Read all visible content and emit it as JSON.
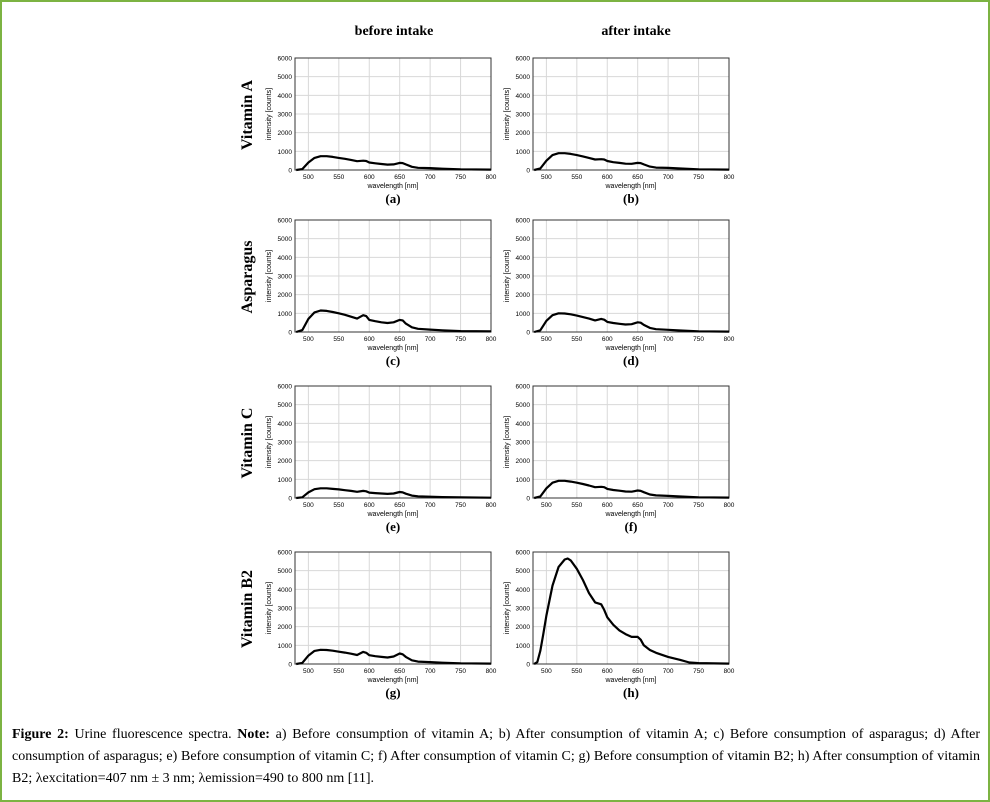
{
  "column_titles": [
    "before intake",
    "after intake"
  ],
  "row_labels": [
    "Vitamin A",
    "Asparagus",
    "Vitamin C",
    "Vitamin B2"
  ],
  "caption": {
    "label": "Figure 2:",
    "text1": " Urine fluorescence spectra. ",
    "note": "Note:",
    "text2": " a) Before consumption of vitamin A; b) After consumption of vitamin A; c) Before consumption of asparagus; d) After consumption of asparagus; e) Before consumption of vitamin C; f) After consumption of vitamin C; g) Before consumption of vitamin B2; h) After consumption of vitamin B2; λexcitation=407 nm ± 3 nm; λemission=490 to 800 nm [11]."
  },
  "chart_data": [
    {
      "id": "a",
      "caption": "(a)",
      "type": "line",
      "xlabel": "wavelength [nm]",
      "ylabel": "intensity [counts]",
      "xlim": [
        478,
        800
      ],
      "ylim": [
        0,
        6000
      ],
      "xticks": [
        500,
        550,
        600,
        650,
        700,
        750,
        800
      ],
      "yticks": [
        0,
        1000,
        2000,
        3000,
        4000,
        5000,
        6000
      ],
      "grid": true,
      "x": [
        480,
        490,
        500,
        510,
        520,
        530,
        540,
        550,
        560,
        570,
        580,
        590,
        595,
        600,
        610,
        620,
        630,
        640,
        650,
        655,
        660,
        670,
        680,
        700,
        720,
        750,
        800
      ],
      "y": [
        0,
        50,
        400,
        650,
        740,
        740,
        700,
        650,
        600,
        540,
        470,
        500,
        480,
        400,
        360,
        320,
        290,
        300,
        380,
        370,
        300,
        170,
        120,
        100,
        70,
        40,
        20
      ]
    },
    {
      "id": "b",
      "caption": "(b)",
      "type": "line",
      "xlabel": "wavelength [nm]",
      "ylabel": "intensity [counts]",
      "xlim": [
        478,
        800
      ],
      "ylim": [
        0,
        6000
      ],
      "xticks": [
        500,
        550,
        600,
        650,
        700,
        750,
        800
      ],
      "yticks": [
        0,
        1000,
        2000,
        3000,
        4000,
        5000,
        6000
      ],
      "grid": true,
      "x": [
        480,
        490,
        500,
        510,
        520,
        530,
        540,
        550,
        560,
        570,
        580,
        590,
        595,
        600,
        610,
        620,
        630,
        640,
        650,
        655,
        660,
        670,
        680,
        700,
        720,
        750,
        800
      ],
      "y": [
        0,
        80,
        500,
        800,
        900,
        900,
        860,
        800,
        730,
        650,
        560,
        580,
        560,
        480,
        420,
        380,
        340,
        330,
        380,
        370,
        300,
        180,
        130,
        110,
        80,
        40,
        20
      ]
    },
    {
      "id": "c",
      "caption": "(c)",
      "type": "line",
      "xlabel": "wavelength [nm]",
      "ylabel": "intensity [counts]",
      "xlim": [
        478,
        800
      ],
      "ylim": [
        0,
        6000
      ],
      "xticks": [
        500,
        550,
        600,
        650,
        700,
        750,
        800
      ],
      "yticks": [
        0,
        1000,
        2000,
        3000,
        4000,
        5000,
        6000
      ],
      "grid": true,
      "x": [
        480,
        490,
        500,
        510,
        520,
        530,
        540,
        550,
        560,
        570,
        580,
        590,
        595,
        600,
        610,
        620,
        630,
        640,
        650,
        655,
        660,
        670,
        680,
        700,
        720,
        750,
        800
      ],
      "y": [
        0,
        100,
        700,
        1050,
        1150,
        1130,
        1070,
        1000,
        920,
        820,
        720,
        900,
        850,
        650,
        580,
        520,
        480,
        520,
        650,
        620,
        450,
        250,
        170,
        130,
        90,
        50,
        30
      ]
    },
    {
      "id": "d",
      "caption": "(d)",
      "type": "line",
      "xlabel": "wavelength [nm]",
      "ylabel": "intensity [counts]",
      "xlim": [
        478,
        800
      ],
      "ylim": [
        0,
        6000
      ],
      "xticks": [
        500,
        550,
        600,
        650,
        700,
        750,
        800
      ],
      "yticks": [
        0,
        1000,
        2000,
        3000,
        4000,
        5000,
        6000
      ],
      "grid": true,
      "x": [
        480,
        490,
        500,
        510,
        520,
        530,
        540,
        550,
        560,
        570,
        580,
        590,
        595,
        600,
        610,
        620,
        630,
        640,
        650,
        655,
        660,
        670,
        680,
        700,
        720,
        750,
        800
      ],
      "y": [
        0,
        90,
        600,
        900,
        1000,
        990,
        950,
        880,
        800,
        720,
        620,
        700,
        660,
        540,
        480,
        440,
        400,
        420,
        520,
        500,
        380,
        220,
        150,
        120,
        80,
        40,
        20
      ]
    },
    {
      "id": "e",
      "caption": "(e)",
      "type": "line",
      "xlabel": "wavelength [nm]",
      "ylabel": "intensity [counts]",
      "xlim": [
        478,
        800
      ],
      "ylim": [
        0,
        6000
      ],
      "xticks": [
        500,
        550,
        600,
        650,
        700,
        750,
        800
      ],
      "yticks": [
        0,
        1000,
        2000,
        3000,
        4000,
        5000,
        6000
      ],
      "grid": true,
      "x": [
        480,
        490,
        500,
        510,
        520,
        530,
        540,
        550,
        560,
        570,
        580,
        590,
        595,
        600,
        610,
        620,
        630,
        640,
        650,
        655,
        660,
        670,
        680,
        700,
        720,
        750,
        800
      ],
      "y": [
        0,
        40,
        300,
        470,
        520,
        520,
        490,
        460,
        420,
        380,
        330,
        380,
        360,
        290,
        260,
        240,
        220,
        240,
        320,
        300,
        230,
        130,
        90,
        70,
        50,
        30,
        15
      ]
    },
    {
      "id": "f",
      "caption": "(f)",
      "type": "line",
      "xlabel": "wavelength [nm]",
      "ylabel": "intensity [counts]",
      "xlim": [
        478,
        800
      ],
      "ylim": [
        0,
        6000
      ],
      "xticks": [
        500,
        550,
        600,
        650,
        700,
        750,
        800
      ],
      "yticks": [
        0,
        1000,
        2000,
        3000,
        4000,
        5000,
        6000
      ],
      "grid": true,
      "x": [
        480,
        490,
        500,
        510,
        520,
        530,
        540,
        550,
        560,
        570,
        580,
        590,
        595,
        600,
        610,
        620,
        630,
        640,
        650,
        655,
        660,
        670,
        680,
        700,
        720,
        750,
        800
      ],
      "y": [
        0,
        80,
        520,
        820,
        920,
        920,
        880,
        820,
        750,
        670,
        580,
        600,
        580,
        490,
        430,
        390,
        350,
        340,
        400,
        380,
        310,
        190,
        140,
        110,
        80,
        40,
        20
      ]
    },
    {
      "id": "g",
      "caption": "(g)",
      "type": "line",
      "xlabel": "wavelength [nm]",
      "ylabel": "intensity [counts]",
      "xlim": [
        478,
        800
      ],
      "ylim": [
        0,
        6000
      ],
      "xticks": [
        500,
        550,
        600,
        650,
        700,
        750,
        800
      ],
      "yticks": [
        0,
        1000,
        2000,
        3000,
        4000,
        5000,
        6000
      ],
      "grid": true,
      "x": [
        480,
        490,
        500,
        510,
        520,
        530,
        540,
        550,
        560,
        570,
        580,
        590,
        595,
        600,
        610,
        620,
        630,
        640,
        650,
        655,
        660,
        670,
        680,
        700,
        720,
        750,
        800
      ],
      "y": [
        0,
        60,
        450,
        700,
        760,
        750,
        710,
        660,
        610,
        550,
        480,
        650,
        600,
        470,
        420,
        380,
        350,
        400,
        560,
        520,
        380,
        200,
        130,
        100,
        70,
        40,
        20
      ]
    },
    {
      "id": "h",
      "caption": "(h)",
      "type": "line",
      "xlabel": "wavelength [nm]",
      "ylabel": "intensity [counts]",
      "xlim": [
        478,
        800
      ],
      "ylim": [
        0,
        6000
      ],
      "xticks": [
        500,
        550,
        600,
        650,
        700,
        750,
        800
      ],
      "yticks": [
        0,
        1000,
        2000,
        3000,
        4000,
        5000,
        6000
      ],
      "grid": true,
      "x": [
        480,
        485,
        490,
        495,
        500,
        510,
        520,
        530,
        535,
        540,
        550,
        560,
        570,
        580,
        590,
        595,
        600,
        610,
        620,
        630,
        640,
        650,
        655,
        660,
        670,
        680,
        700,
        720,
        735,
        750,
        800
      ],
      "y": [
        0,
        100,
        700,
        1600,
        2600,
        4200,
        5200,
        5600,
        5650,
        5550,
        5100,
        4500,
        3800,
        3300,
        3200,
        2900,
        2500,
        2100,
        1800,
        1600,
        1450,
        1450,
        1300,
        1000,
        750,
        600,
        380,
        220,
        80,
        50,
        20
      ]
    }
  ]
}
